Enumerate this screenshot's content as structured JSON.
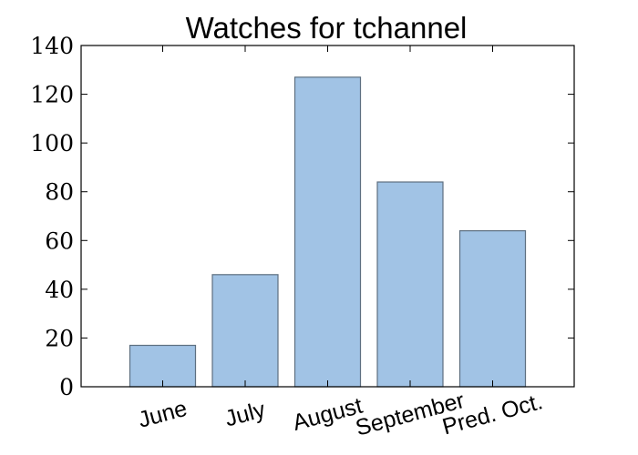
{
  "chart_data": {
    "type": "bar",
    "title": "Watches for tchannel",
    "xlabel": "",
    "ylabel": "",
    "categories": [
      "June",
      "July",
      "August",
      "September",
      "Pred. Oct."
    ],
    "values": [
      17,
      46,
      127,
      84,
      64
    ],
    "ylim": [
      0,
      140
    ],
    "yticks": [
      0,
      20,
      40,
      60,
      80,
      100,
      120,
      140
    ],
    "ytick_labels": [
      "0",
      "20",
      "40",
      "60",
      "80",
      "100",
      "120",
      "140"
    ],
    "grid": false,
    "legend": "none",
    "colors": {
      "bar_fill": "#a1c3e5",
      "bar_edge": "#5d6f80",
      "axes": "#000000",
      "background": "#ffffff"
    }
  }
}
